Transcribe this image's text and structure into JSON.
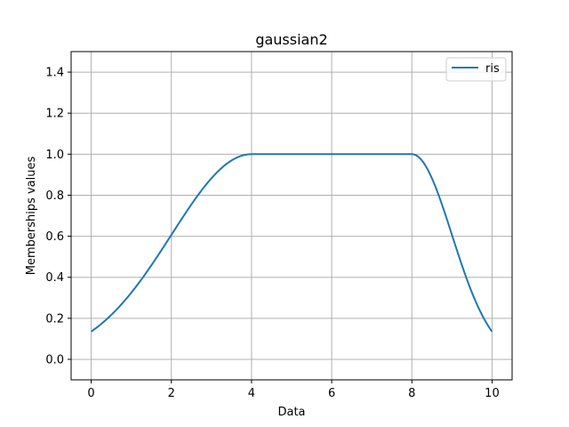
{
  "chart_data": {
    "type": "line",
    "title": "gaussian2",
    "xlabel": "Data",
    "ylabel": "Memberships values",
    "xlim": [
      -0.5,
      10.5
    ],
    "ylim": [
      -0.1,
      1.5
    ],
    "xticks": [
      0,
      2,
      4,
      6,
      8,
      10
    ],
    "xtick_labels": [
      "0",
      "2",
      "4",
      "6",
      "8",
      "10"
    ],
    "yticks": [
      0.0,
      0.2,
      0.4,
      0.6,
      0.8,
      1.0,
      1.2,
      1.4
    ],
    "ytick_labels": [
      "0.0",
      "0.2",
      "0.4",
      "0.6",
      "0.8",
      "1.0",
      "1.2",
      "1.4"
    ],
    "grid": true,
    "legend_position": "top-right",
    "series": [
      {
        "name": "ris",
        "color": "#1f77b4",
        "function": "gaussian2",
        "params": {
          "mean1": 4,
          "sigma1": 2,
          "mean2": 8,
          "sigma2": 1
        },
        "x": [
          0,
          0.5,
          1,
          1.5,
          2,
          2.5,
          3,
          3.5,
          4,
          5,
          6,
          7,
          8,
          8.25,
          8.5,
          8.75,
          9,
          9.25,
          9.5,
          9.75,
          10
        ],
        "y": [
          0.135,
          0.216,
          0.325,
          0.458,
          0.607,
          0.755,
          0.882,
          0.969,
          1.0,
          1.0,
          1.0,
          1.0,
          1.0,
          0.969,
          0.882,
          0.755,
          0.607,
          0.458,
          0.325,
          0.216,
          0.135
        ]
      }
    ]
  }
}
